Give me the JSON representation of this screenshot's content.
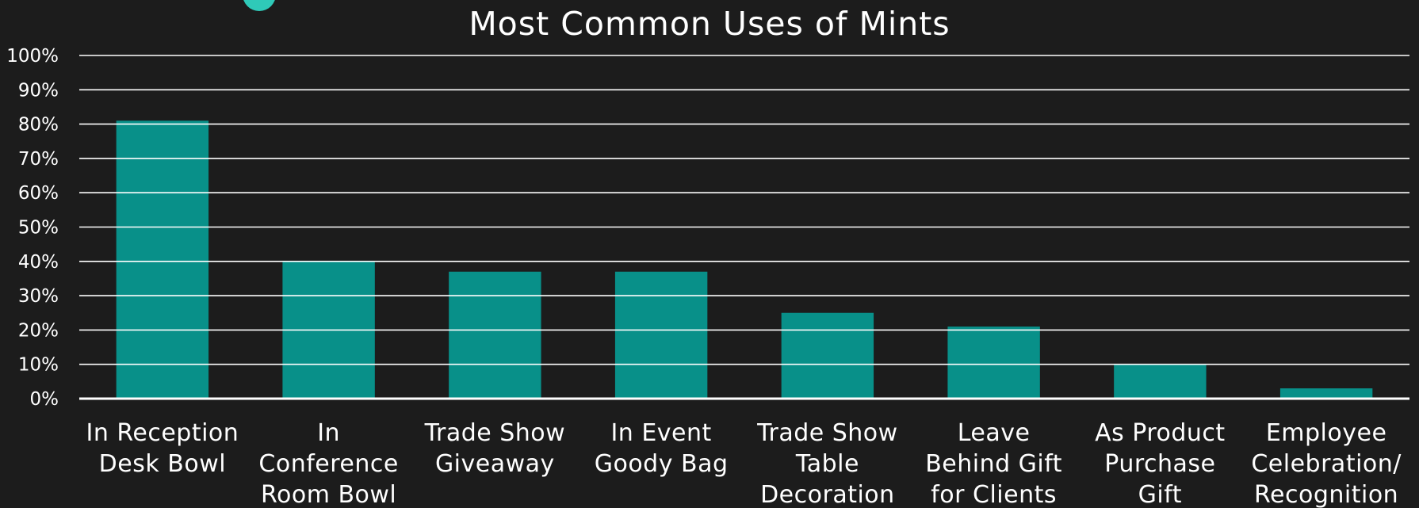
{
  "colors": {
    "background": "#1c1c1c",
    "bar": "#089089",
    "grid": "#ffffff",
    "text": "#ffffff",
    "accent": "#2fc9b8"
  },
  "chart_data": {
    "type": "bar",
    "title": "Most Common Uses of Mints",
    "xlabel": "",
    "ylabel": "",
    "ylim": [
      0,
      100
    ],
    "y_unit": "%",
    "yticks": [
      "0%",
      "10%",
      "20%",
      "30%",
      "40%",
      "50%",
      "60%",
      "70%",
      "80%",
      "90%",
      "100%"
    ],
    "grid": true,
    "legend": "none",
    "categories": [
      [
        "In Reception",
        "Desk Bowl"
      ],
      [
        "In",
        "Conference",
        "Room Bowl"
      ],
      [
        "Trade Show",
        "Giveaway"
      ],
      [
        "In Event",
        "Goody Bag"
      ],
      [
        "Trade Show",
        "Table",
        "Decoration"
      ],
      [
        "Leave",
        "Behind Gift",
        "for Clients"
      ],
      [
        "As Product",
        "Purchase",
        "Gift"
      ],
      [
        "Employee",
        "Celebration/",
        "Recognition"
      ]
    ],
    "values": [
      81,
      40,
      37,
      37,
      25,
      21,
      10,
      3
    ]
  }
}
